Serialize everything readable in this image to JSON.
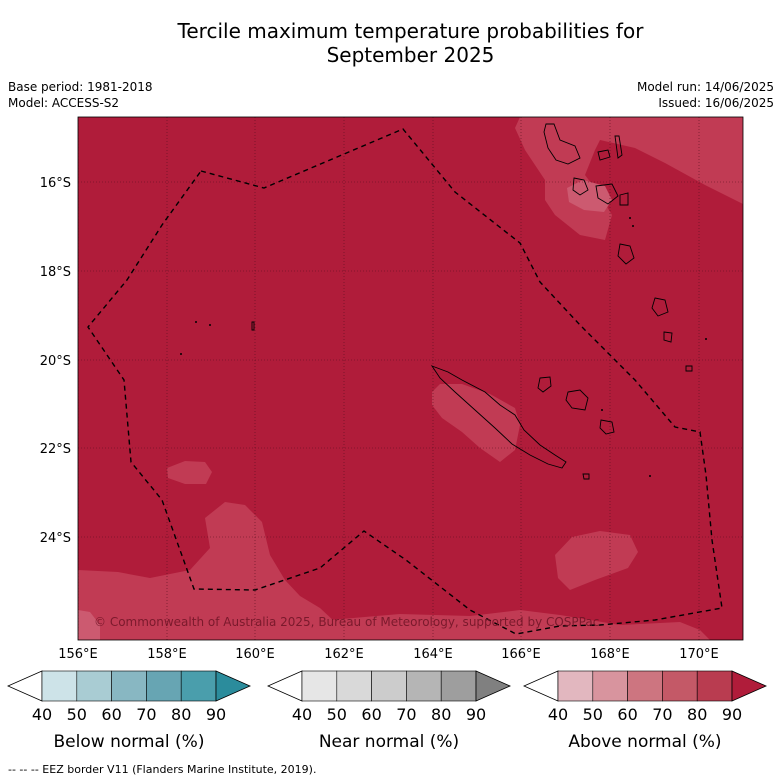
{
  "title": {
    "line1": "Tercile maximum temperature probabilities for",
    "line2": "September 2025"
  },
  "info_left": {
    "base_period": "Base period: 1981-2018",
    "model": "Model: ACCESS-S2"
  },
  "info_right": {
    "model_run": "Model run: 14/06/2025",
    "issued": "Issued: 16/06/2025"
  },
  "map": {
    "lat_labels": [
      "16°S",
      "18°S",
      "20°S",
      "22°S",
      "24°S"
    ],
    "lon_labels": [
      "156°E",
      "158°E",
      "160°E",
      "162°E",
      "164°E",
      "166°E",
      "168°E",
      "170°E"
    ],
    "copyright": "© Commonwealth of Australia 2025, Bureau of Meteorology, supported by COSPPac",
    "dominant_category": "Above normal",
    "dominant_probability_band": "80-90"
  },
  "colorbars": [
    {
      "label": "Below normal (%)",
      "ticks": [
        "40",
        "50",
        "60",
        "70",
        "80",
        "90"
      ],
      "colors": [
        "#ffffff",
        "#cde3e8",
        "#a9ccd3",
        "#88b7c2",
        "#67a5b3",
        "#4a9eac",
        "#2b8c9c"
      ]
    },
    {
      "label": "Near normal (%)",
      "ticks": [
        "40",
        "50",
        "60",
        "70",
        "80",
        "90"
      ],
      "colors": [
        "#ffffff",
        "#e6e6e6",
        "#d9d9d9",
        "#cccccc",
        "#b5b5b5",
        "#9e9e9e",
        "#808080"
      ]
    },
    {
      "label": "Above normal (%)",
      "ticks": [
        "40",
        "50",
        "60",
        "70",
        "80",
        "90"
      ],
      "colors": [
        "#ffffff",
        "#e2b7bf",
        "#d8949e",
        "#cd7580",
        "#c45967",
        "#b93c50",
        "#b01c3a"
      ]
    }
  ],
  "footnote": "-- -- -- EEZ border V11 (Flanders Marine Institute, 2019)."
}
